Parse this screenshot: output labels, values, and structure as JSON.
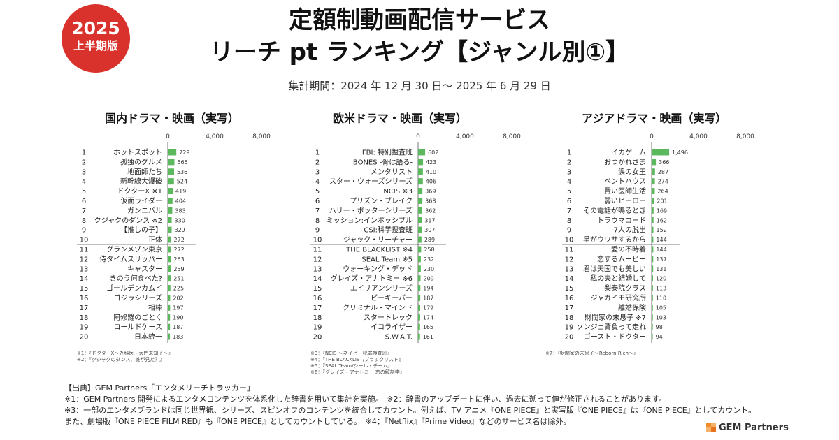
{
  "badge": {
    "year": "2025",
    "sub": "上半期版"
  },
  "title": {
    "line1": "定額制動画配信サービス",
    "line2": "リーチ pt ランキング【ジャンル別①】",
    "period": "集計期間：2024 年 12 月 30 日～ 2025 年 6 月 29 日"
  },
  "colors": {
    "bar": "#5cb85c",
    "badge": "#d9312b",
    "logo_accent": "#f28c28"
  },
  "chart_data": [
    {
      "type": "bar",
      "orientation": "horizontal",
      "title": "国内ドラマ・映画（実写）",
      "xlim": [
        0,
        8000
      ],
      "ticks": [
        "0",
        "4,000",
        "8,000"
      ],
      "ranks": [
        "1",
        "2",
        "3",
        "4",
        "5",
        "6",
        "7",
        "8",
        "9",
        "10",
        "11",
        "12",
        "13",
        "14",
        "15",
        "16",
        "17",
        "18",
        "19",
        "20"
      ],
      "categories": [
        "ホットスポット",
        "孤独のグルメ",
        "地面師たち",
        "新幹線大爆破",
        "ドクターX ※1",
        "仮面ライダー",
        "ガンニバル",
        "クジャクのダンス ※2",
        "【推しの子】",
        "正体",
        "グランメゾン東京",
        "侍タイムスリッパー",
        "キャスター",
        "きのう何食べた?",
        "ゴールデンカムイ",
        "ゴジラシリーズ",
        "相棒",
        "阿修羅のごとく",
        "コールドケース",
        "日本統一"
      ],
      "values": [
        729,
        565,
        536,
        524,
        419,
        404,
        383,
        330,
        329,
        272,
        272,
        263,
        259,
        251,
        225,
        202,
        197,
        190,
        187,
        183
      ],
      "labels": [
        "729",
        "565",
        "536",
        "524",
        "419",
        "404",
        "383",
        "330",
        "329",
        "272",
        "272",
        "263",
        "259",
        "251",
        "225",
        "202",
        "197",
        "190",
        "187",
        "183"
      ],
      "notes": [
        "※1：『ドクターX～外科医・大門未知子～』",
        "※2：『クジャクのダンス、誰が見た？』"
      ]
    },
    {
      "type": "bar",
      "orientation": "horizontal",
      "title": "欧米ドラマ・映画（実写）",
      "xlim": [
        0,
        8000
      ],
      "ticks": [
        "0",
        "4,000",
        "8,000"
      ],
      "ranks": [
        "1",
        "2",
        "3",
        "4",
        "5",
        "6",
        "7",
        "8",
        "9",
        "10",
        "11",
        "12",
        "13",
        "14",
        "15",
        "16",
        "17",
        "18",
        "19",
        "20"
      ],
      "categories": [
        "FBI: 特別捜査班",
        "BONES -骨は語る-",
        "メンタリスト",
        "スター・ウォーズシリーズ",
        "NCIS ※3",
        "プリズン・ブレイク",
        "ハリー・ポッターシリーズ",
        "ミッション:インポッシブル",
        "CSI:科学捜査班",
        "ジャック・リーチャー",
        "THE BLACKLIST ※4",
        "SEAL Team ※5",
        "ウォーキング・デッド",
        "グレイズ・アナトミー ※6",
        "エイリアンシリーズ",
        "ピーキーパー",
        "クリミナル・マインド",
        "スタートレック",
        "イコライザー",
        "S.W.A.T."
      ],
      "values": [
        602,
        423,
        410,
        406,
        369,
        368,
        362,
        317,
        307,
        289,
        258,
        232,
        230,
        209,
        194,
        187,
        179,
        174,
        165,
        161
      ],
      "labels": [
        "602",
        "423",
        "410",
        "406",
        "369",
        "368",
        "362",
        "317",
        "307",
        "289",
        "258",
        "232",
        "230",
        "209",
        "194",
        "187",
        "179",
        "174",
        "165",
        "161"
      ],
      "notes": [
        "※3：『NCIS ～ネイビー犯罪捜査班』",
        "※4：『THE BLACKLIST/ブラックリスト』",
        "※5：『SEAL Team/シール・チーム』",
        "※6：『グレイズ・アナトミー 恋の解剖学』"
      ]
    },
    {
      "type": "bar",
      "orientation": "horizontal",
      "title": "アジアドラマ・映画（実写）",
      "xlim": [
        0,
        8000
      ],
      "ticks": [
        "0",
        "4,000",
        "8,000"
      ],
      "ranks": [
        "1",
        "2",
        "3",
        "4",
        "5",
        "6",
        "7",
        "8",
        "9",
        "10",
        "11",
        "12",
        "13",
        "14",
        "15",
        "16",
        "17",
        "18",
        "19",
        "20"
      ],
      "categories": [
        "イカゲーム",
        "おつかれさま",
        "涙の女王",
        "ペントハウス",
        "賢い医師生活",
        "弱いヒーロー",
        "その電話が鳴るとき",
        "トラウマコード",
        "7人の脱出",
        "星がウワサするから",
        "愛の不時着",
        "恋するムービー",
        "君は天国でも美しい",
        "私の夫と結婚して",
        "梨泰院クラス",
        "ジャガイモ研究所",
        "離婚保険",
        "財閥家の末息子 ※7",
        "ソンジェ背負って走れ",
        "ゴースト・ドクター"
      ],
      "values": [
        1496,
        366,
        287,
        274,
        264,
        201,
        169,
        162,
        152,
        144,
        144,
        137,
        131,
        120,
        113,
        110,
        105,
        103,
        98,
        94
      ],
      "labels": [
        "1,496",
        "366",
        "287",
        "274",
        "264",
        "201",
        "169",
        "162",
        "152",
        "144",
        "144",
        "137",
        "131",
        "120",
        "113",
        "110",
        "105",
        "103",
        "98",
        "94"
      ],
      "notes": [
        "※7：『財閥家の末息子～Reborn Rich～』"
      ]
    }
  ],
  "footer": {
    "line1": "【出典】GEM Partners「エンタメリーチトラッカー」",
    "line2": "※1：GEM Partners 開発によるエンタメコンテンツを体系化した辞書を用いて集計を実施。　※2：辞書のアップデートに伴い、過去に遡って値が修正されることがあります。",
    "line3": "※3：一部のエンタメブランドは同じ世界観、シリーズ、スピンオフのコンテンツを統合してカウント。例えば、TV アニメ『ONE PIECE』と実写版『ONE PIECE』は『ONE PIECE』としてカウント。",
    "line4": "また、劇場版『ONE PIECE FILM RED』も『ONE PIECE』としてカウントしている。　※4：『Netflix』『Prime Video』などのサービス名は除外。"
  },
  "logo": {
    "text": "GEM Partners"
  }
}
